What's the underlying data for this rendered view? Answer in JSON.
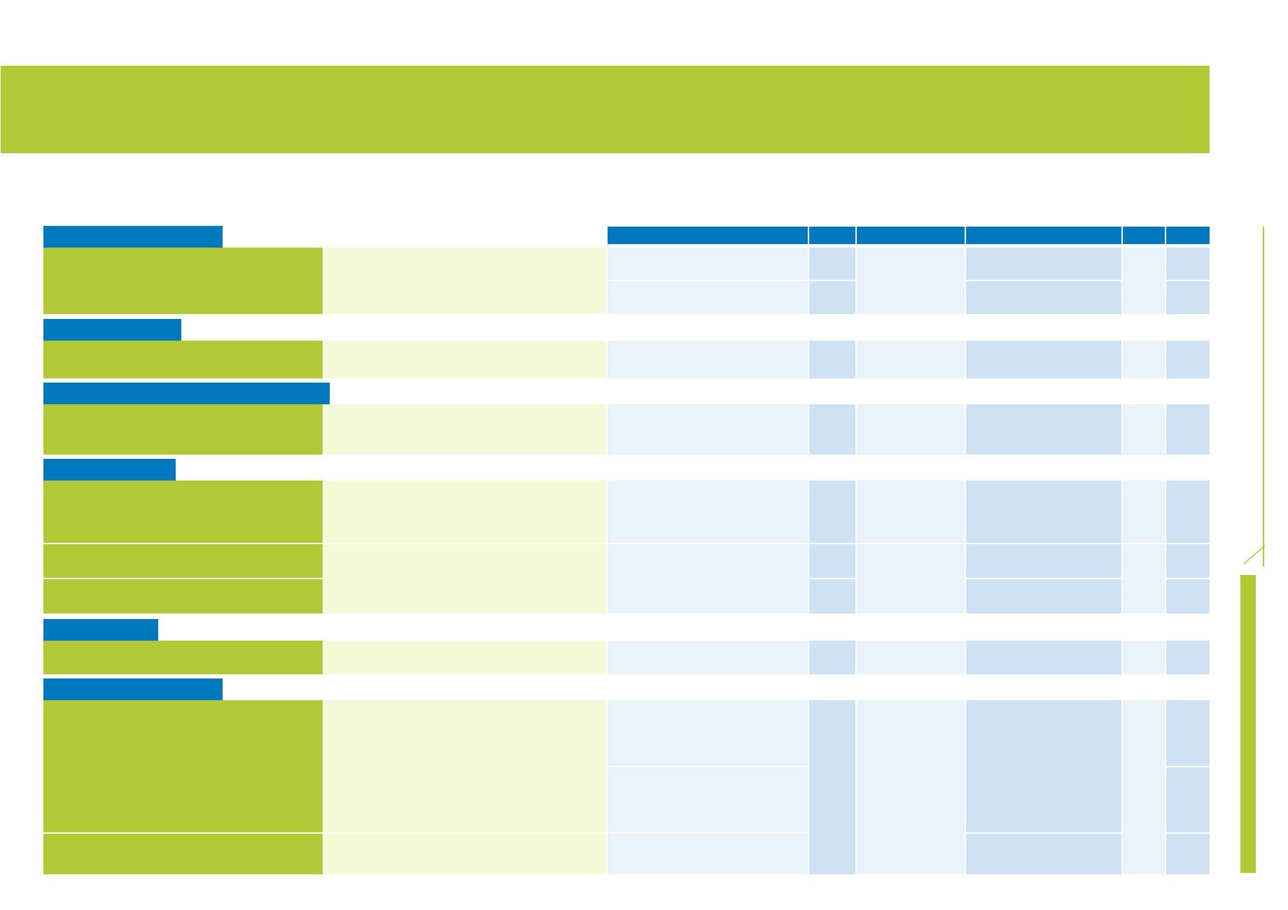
{
  "document": {
    "banner_title": "",
    "sections": [
      {
        "heading": "",
        "rows": 2
      },
      {
        "heading": "",
        "rows": 1
      },
      {
        "heading": "",
        "rows": 1
      },
      {
        "heading": "",
        "rows": 3
      },
      {
        "heading": "",
        "rows": 1
      },
      {
        "heading": "",
        "rows": 3
      }
    ],
    "column_headers": [
      "",
      "",
      "",
      "",
      "",
      ""
    ]
  },
  "colors": {
    "accent_green": "#b0c935",
    "header_blue": "#0078c0",
    "pale_green": "#f4f9d8",
    "light_blue": "#e8f2fb",
    "mid_blue": "#cfe1f4"
  }
}
